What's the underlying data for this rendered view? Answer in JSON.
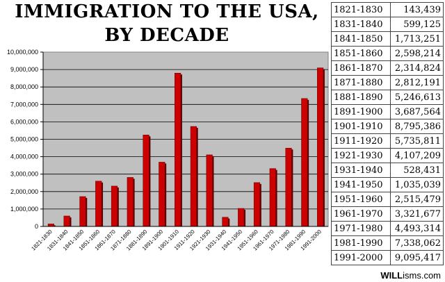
{
  "title": {
    "line1": "IMMIGRATION TO THE USA,",
    "line2": "BY DECADE"
  },
  "footer": {
    "site_bold": "WILL",
    "site_rest": "isms.com"
  },
  "colors": {
    "bar": "#cc0000",
    "bar_shadow": "#5a0000",
    "plot_bg": "#c0c0c0"
  },
  "table": [
    {
      "decade": "1821-1830",
      "value": "143,439"
    },
    {
      "decade": "1831-1840",
      "value": "599,125"
    },
    {
      "decade": "1841-1850",
      "value": "1,713,251"
    },
    {
      "decade": "1851-1860",
      "value": "2,598,214"
    },
    {
      "decade": "1861-1870",
      "value": "2,314,824"
    },
    {
      "decade": "1871-1880",
      "value": "2,812,191"
    },
    {
      "decade": "1881-1890",
      "value": "5,246,613"
    },
    {
      "decade": "1891-1900",
      "value": "3,687,564"
    },
    {
      "decade": "1901-1910",
      "value": "8,795,386"
    },
    {
      "decade": "1911-1920",
      "value": "5,735,811"
    },
    {
      "decade": "1921-1930",
      "value": "4,107,209"
    },
    {
      "decade": "1931-1940",
      "value": "528,431"
    },
    {
      "decade": "1941-1950",
      "value": "1,035,039"
    },
    {
      "decade": "1951-1960",
      "value": "2,515,479"
    },
    {
      "decade": "1961-1970",
      "value": "3,321,677"
    },
    {
      "decade": "1971-1980",
      "value": "4,493,314"
    },
    {
      "decade": "1981-1990",
      "value": "7,338,062"
    },
    {
      "decade": "1991-2000",
      "value": "9,095,417"
    }
  ],
  "chart_data": {
    "type": "bar",
    "title": "IMMIGRATION TO THE USA, BY DECADE",
    "xlabel": "",
    "ylabel": "",
    "categories": [
      "1821-1830",
      "1831-1840",
      "1841-1850",
      "1851-1860",
      "1861-1870",
      "1871-1880",
      "1881-1890",
      "1891-1900",
      "1901-1910",
      "1911-1920",
      "1921-1930",
      "1931-1940",
      "1941-1950",
      "1951-1960",
      "1961-1970",
      "1971-1980",
      "1981-1990",
      "1991-2000"
    ],
    "values": [
      143439,
      599125,
      1713251,
      2598214,
      2314824,
      2812191,
      5246613,
      3687564,
      8795386,
      5735811,
      4107209,
      528431,
      1035039,
      2515479,
      3321677,
      4493314,
      7338062,
      9095417
    ],
    "ylim": [
      0,
      10000000
    ],
    "yticks": [
      0,
      1000000,
      2000000,
      3000000,
      4000000,
      5000000,
      6000000,
      7000000,
      8000000,
      9000000,
      10000000
    ],
    "ytick_labels": [
      "0",
      "1,000,000",
      "2,000,000",
      "3,000,000",
      "4,000,000",
      "5,000,000",
      "6,000,000",
      "7,000,000",
      "8,000,000",
      "9,000,000",
      "10,000,000"
    ],
    "grid": true,
    "legend": "none"
  }
}
